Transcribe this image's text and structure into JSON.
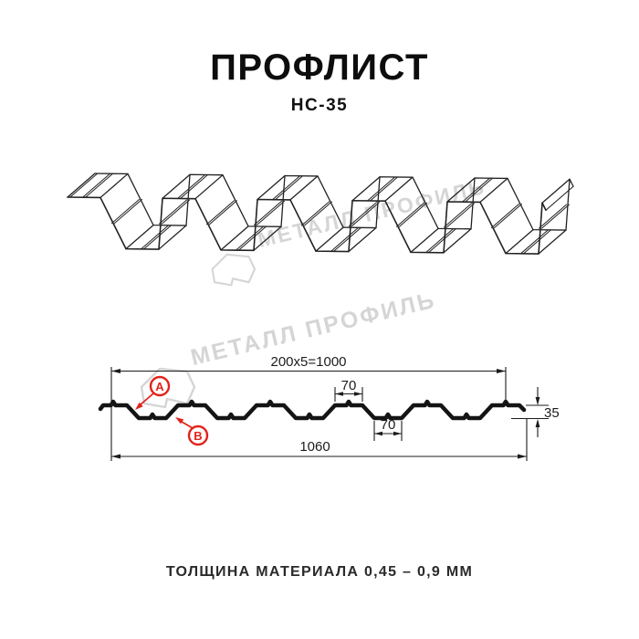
{
  "header": {
    "title": "ПРОФЛИСТ",
    "subtitle": "НС-35"
  },
  "footer": {
    "text": "ТОЛЩИНА МАТЕРИАЛА 0,45 – 0,9 ММ"
  },
  "watermark": {
    "text": "МЕТАЛЛ ПРОФИЛЬ",
    "color": "#d5d5d5"
  },
  "diagram": {
    "type": "technical-drawing",
    "profile_name": "НС-35",
    "dimensions": {
      "pitch": "200x5=1000",
      "crest_width": "70",
      "valley_width": "70",
      "height": "35",
      "total_width": "1060"
    },
    "callouts": {
      "a": "A",
      "b": "B"
    },
    "colors": {
      "line": "#1c1c1c",
      "accent": "#e2231a"
    }
  }
}
